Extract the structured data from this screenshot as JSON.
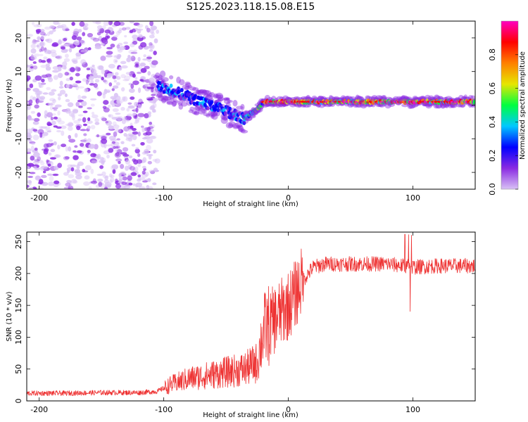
{
  "title": "S125.2023.118.15.08.E15",
  "chart_data": [
    {
      "type": "heatmap",
      "xlabel": "Height of straight line (km)",
      "ylabel": "Frequency (Hz)",
      "xlim": [
        -210,
        150
      ],
      "ylim": [
        -25,
        25
      ],
      "x_ticks": [
        -200,
        -100,
        0,
        100
      ],
      "y_ticks": [
        20,
        10,
        0,
        -10,
        -20
      ],
      "colorbar": {
        "label": "Normalized spectral amplitude",
        "range": [
          0.0,
          1.0
        ],
        "ticks": [
          0.0,
          0.2,
          0.4,
          0.6,
          0.8
        ],
        "colors": [
          "#d9c2f5",
          "#8a2be2",
          "#0000ff",
          "#00c8ff",
          "#00ff40",
          "#e6e600",
          "#ff8000",
          "#ff0000",
          "#ff00c0"
        ]
      },
      "regions": [
        {
          "x": [
            -210,
            -105
          ],
          "f_center": 0,
          "f_halfwidth": 25,
          "amplitude": 0.1
        },
        {
          "x": [
            -105,
            -35
          ],
          "f_start": 6,
          "f_end": -4,
          "f_halfwidth": 5,
          "amplitude": 0.3
        },
        {
          "x": [
            -35,
            -20
          ],
          "f_start": -4,
          "f_end": 0.5,
          "f_halfwidth": 1.5,
          "amplitude": 0.5
        },
        {
          "x": [
            -20,
            150
          ],
          "f_center": 1,
          "f_halfwidth": 1.5,
          "amplitude": 0.8
        }
      ]
    },
    {
      "type": "line",
      "xlabel": "Height of straight line (km)",
      "ylabel": "SNR (10 * v/v)",
      "xlim": [
        -210,
        150
      ],
      "ylim": [
        0,
        265
      ],
      "x_ticks": [
        -200,
        -100,
        0,
        100
      ],
      "y_ticks": [
        0,
        50,
        100,
        150,
        200,
        250
      ],
      "color": "#ee3333",
      "x": [
        -210,
        -180,
        -150,
        -120,
        -105,
        -95,
        -80,
        -65,
        -50,
        -35,
        -25,
        -20,
        -10,
        0,
        5,
        10,
        20,
        30,
        50,
        80,
        100,
        120,
        150
      ],
      "y": [
        12,
        12,
        13,
        13,
        15,
        25,
        35,
        40,
        45,
        50,
        60,
        110,
        130,
        150,
        165,
        185,
        210,
        215,
        215,
        215,
        210,
        212,
        212
      ]
    }
  ]
}
